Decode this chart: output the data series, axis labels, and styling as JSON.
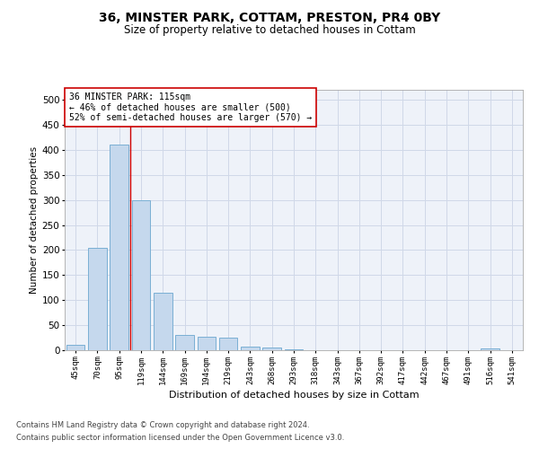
{
  "title": "36, MINSTER PARK, COTTAM, PRESTON, PR4 0BY",
  "subtitle": "Size of property relative to detached houses in Cottam",
  "xlabel": "Distribution of detached houses by size in Cottam",
  "ylabel": "Number of detached properties",
  "categories": [
    "45sqm",
    "70sqm",
    "95sqm",
    "119sqm",
    "144sqm",
    "169sqm",
    "194sqm",
    "219sqm",
    "243sqm",
    "268sqm",
    "293sqm",
    "318sqm",
    "343sqm",
    "367sqm",
    "392sqm",
    "417sqm",
    "442sqm",
    "467sqm",
    "491sqm",
    "516sqm",
    "541sqm"
  ],
  "values": [
    10,
    205,
    410,
    300,
    115,
    30,
    27,
    25,
    8,
    5,
    2,
    0,
    0,
    0,
    0,
    0,
    0,
    0,
    0,
    3,
    0
  ],
  "bar_color": "#c5d8ed",
  "bar_edge_color": "#7aafd4",
  "vline_color": "#cc0000",
  "annotation_text": "36 MINSTER PARK: 115sqm\n← 46% of detached houses are smaller (500)\n52% of semi-detached houses are larger (570) →",
  "annotation_box_color": "#ffffff",
  "annotation_box_edge": "#cc0000",
  "grid_color": "#d0d8e8",
  "background_color": "#eef2f9",
  "footer1": "Contains HM Land Registry data © Crown copyright and database right 2024.",
  "footer2": "Contains public sector information licensed under the Open Government Licence v3.0.",
  "ylim": [
    0,
    520
  ],
  "yticks": [
    0,
    50,
    100,
    150,
    200,
    250,
    300,
    350,
    400,
    450,
    500
  ]
}
